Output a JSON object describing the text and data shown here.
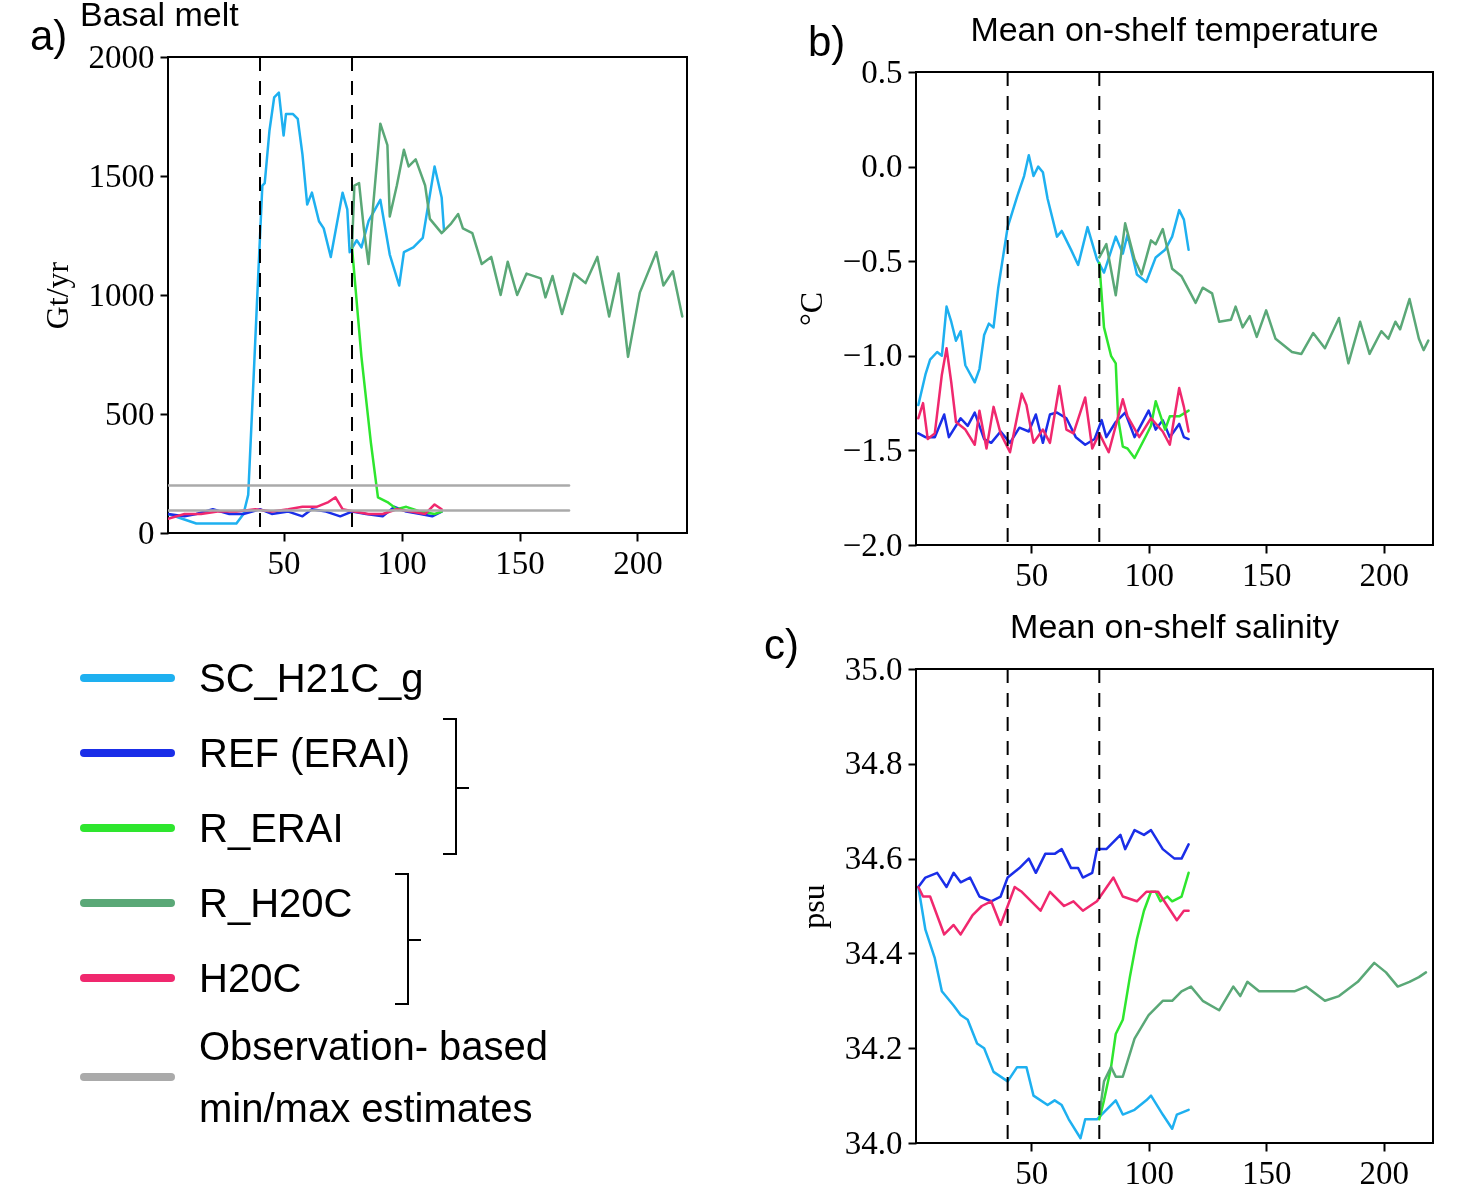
{
  "chart_data": [
    {
      "type": "line",
      "title": "Basal melt",
      "ylabel": "Gt/yr",
      "annotations": [
        "a)"
      ],
      "legend": "bottom",
      "xlim": [
        1,
        221
      ],
      "xticks": [
        50,
        100,
        150,
        200
      ],
      "ylim": [
        0,
        2000
      ],
      "yticks": [
        0,
        500,
        1000,
        1500,
        2000
      ],
      "ref_lines": [
        {
          "axis": "x",
          "value": 40,
          "color": "#000000",
          "line_style": "dashed"
        },
        {
          "axis": "x",
          "value": 79,
          "color": "#000000",
          "line_style": "dashed"
        }
      ],
      "series": [
        {
          "name": "SC_H21C_g",
          "color": "#1eb0f0",
          "x": [
            1,
            7,
            13,
            20,
            30,
            33,
            35,
            37,
            39,
            41,
            42,
            44,
            46,
            48,
            50,
            51,
            54,
            56,
            58,
            60,
            62,
            65,
            67,
            70,
            75,
            77,
            78,
            81,
            83,
            86,
            91,
            95,
            99,
            101,
            105,
            109,
            111,
            114,
            117,
            118
          ],
          "values": [
            80,
            60,
            40,
            40,
            40,
            80,
            160,
            590,
            1030,
            1460,
            1470,
            1690,
            1830,
            1850,
            1670,
            1760,
            1760,
            1740,
            1590,
            1380,
            1430,
            1310,
            1280,
            1160,
            1430,
            1360,
            1180,
            1230,
            1200,
            1310,
            1400,
            1170,
            1040,
            1180,
            1200,
            1240,
            1360,
            1540,
            1410,
            1270
          ]
        },
        {
          "name": "REF (ERAI)",
          "color": "#1a2ee8",
          "x": [
            1,
            8,
            13,
            20,
            27,
            33,
            40,
            45,
            52,
            58,
            62,
            68,
            74,
            79,
            85,
            92,
            97,
            102,
            108,
            113,
            117
          ],
          "values": [
            80,
            70,
            80,
            100,
            80,
            80,
            100,
            80,
            90,
            70,
            100,
            90,
            70,
            90,
            80,
            70,
            110,
            90,
            80,
            70,
            90
          ]
        },
        {
          "name": "R_ERAI",
          "color": "#2ee62e",
          "x": [
            79,
            83,
            87,
            90,
            94,
            98,
            102,
            108,
            114,
            117
          ],
          "values": [
            1200,
            740,
            380,
            150,
            130,
            100,
            110,
            90,
            80,
            90
          ]
        },
        {
          "name": "R_H20C",
          "color": "#5aa877",
          "x": [
            79,
            80,
            82,
            84,
            86,
            88,
            91,
            94,
            95,
            98,
            101,
            103,
            106,
            110,
            112,
            117,
            121,
            124,
            126,
            130,
            134,
            138,
            142,
            145,
            149,
            153,
            159,
            161,
            164,
            168,
            173,
            178,
            183,
            188,
            192,
            196,
            201,
            208,
            211,
            215,
            219
          ],
          "values": [
            1200,
            1460,
            1470,
            1280,
            1130,
            1380,
            1720,
            1630,
            1330,
            1460,
            1610,
            1540,
            1570,
            1460,
            1320,
            1260,
            1300,
            1340,
            1280,
            1260,
            1130,
            1160,
            1000,
            1140,
            1000,
            1090,
            1070,
            990,
            1080,
            920,
            1090,
            1050,
            1160,
            910,
            1090,
            740,
            1010,
            1180,
            1040,
            1100,
            910
          ]
        },
        {
          "name": "H20C",
          "color": "#f0286e",
          "x": [
            1,
            8,
            15,
            22,
            30,
            38,
            45,
            52,
            58,
            64,
            69,
            72,
            75,
            80,
            86,
            92,
            98,
            104,
            110,
            114,
            117
          ],
          "values": [
            60,
            80,
            80,
            90,
            90,
            100,
            90,
            100,
            110,
            110,
            130,
            150,
            100,
            90,
            80,
            80,
            100,
            90,
            80,
            120,
            100
          ]
        },
        {
          "name": "Observation- based min/max estimates",
          "color": "#aaaaaa",
          "x": [
            1,
            171
          ],
          "values": [
            200,
            200
          ]
        },
        {
          "color": "#aaaaaa",
          "x": [
            1,
            171
          ],
          "values": [
            95,
            95
          ]
        }
      ]
    },
    {
      "type": "line",
      "title": "Mean on-shelf temperature",
      "ylabel": "°C",
      "annotations": [
        "b)"
      ],
      "xlim": [
        1,
        221
      ],
      "xticks": [
        50,
        100,
        150,
        200
      ],
      "ylim": [
        -2,
        0.5
      ],
      "yticks": [
        {
          "value": -2,
          "label": "−2.0"
        },
        {
          "value": -1.5,
          "label": "−1.5"
        },
        {
          "value": -1,
          "label": "−1.0"
        },
        {
          "value": -0.5,
          "label": "−0.5"
        },
        {
          "value": 0,
          "label": "0.0"
        },
        0.5
      ],
      "ref_lines": [
        {
          "axis": "x",
          "value": 40,
          "color": "#000000",
          "line_style": "dashed"
        },
        {
          "axis": "x",
          "value": 79,
          "color": "#000000",
          "line_style": "dashed"
        }
      ],
      "series": [
        {
          "color": "#1eb0f0",
          "x": [
            2,
            5,
            7,
            10,
            12,
            14,
            16,
            18,
            20,
            22,
            26,
            28,
            30,
            32,
            34,
            36,
            40,
            44,
            47,
            49,
            51,
            53,
            55,
            57,
            61,
            63,
            67,
            70,
            74,
            78,
            81,
            86,
            89,
            91,
            95,
            99,
            103,
            107,
            110,
            113,
            115,
            117
          ],
          "values": [
            -1.26,
            -1.1,
            -1.02,
            -0.98,
            -1.0,
            -0.74,
            -0.82,
            -0.92,
            -0.87,
            -1.05,
            -1.14,
            -1.07,
            -0.89,
            -0.83,
            -0.85,
            -0.64,
            -0.32,
            -0.16,
            -0.05,
            0.06,
            -0.05,
            0.0,
            -0.03,
            -0.17,
            -0.37,
            -0.34,
            -0.44,
            -0.52,
            -0.32,
            -0.49,
            -0.56,
            -0.37,
            -0.46,
            -0.36,
            -0.57,
            -0.61,
            -0.48,
            -0.44,
            -0.37,
            -0.23,
            -0.28,
            -0.44
          ]
        },
        {
          "color": "#1a2ee8",
          "x": [
            2,
            5,
            9,
            13,
            15,
            20,
            23,
            26,
            30,
            33,
            37,
            41,
            45,
            49,
            52,
            55,
            58,
            61,
            65,
            69,
            73,
            77,
            80,
            82,
            86,
            90,
            94,
            100,
            103,
            106,
            109,
            113,
            115,
            117
          ],
          "values": [
            -1.41,
            -1.43,
            -1.43,
            -1.31,
            -1.43,
            -1.33,
            -1.37,
            -1.3,
            -1.44,
            -1.46,
            -1.4,
            -1.46,
            -1.38,
            -1.4,
            -1.31,
            -1.46,
            -1.31,
            -1.3,
            -1.33,
            -1.43,
            -1.47,
            -1.44,
            -1.34,
            -1.43,
            -1.35,
            -1.3,
            -1.43,
            -1.29,
            -1.39,
            -1.34,
            -1.43,
            -1.36,
            -1.43,
            -1.44
          ]
        },
        {
          "color": "#2ee62e",
          "x": [
            79,
            81,
            84,
            86,
            87,
            89,
            91,
            94,
            99,
            101,
            103,
            107,
            109,
            113,
            117
          ],
          "values": [
            -0.51,
            -0.85,
            -1.0,
            -1.04,
            -1.33,
            -1.48,
            -1.49,
            -1.54,
            -1.42,
            -1.37,
            -1.24,
            -1.39,
            -1.32,
            -1.32,
            -1.29
          ]
        },
        {
          "color": "#5aa877",
          "x": [
            79,
            82,
            86,
            90,
            94,
            97,
            101,
            103,
            106,
            110,
            114,
            120,
            123,
            127,
            130,
            135,
            137,
            140,
            143,
            146,
            150,
            154,
            161,
            165,
            170,
            175,
            181,
            185,
            190,
            194,
            199,
            202,
            205,
            207,
            211,
            215,
            217,
            219
          ],
          "values": [
            -0.48,
            -0.41,
            -0.68,
            -0.3,
            -0.49,
            -0.57,
            -0.39,
            -0.41,
            -0.33,
            -0.54,
            -0.58,
            -0.72,
            -0.64,
            -0.67,
            -0.82,
            -0.81,
            -0.74,
            -0.85,
            -0.79,
            -0.9,
            -0.76,
            -0.91,
            -0.98,
            -0.99,
            -0.88,
            -0.96,
            -0.8,
            -1.04,
            -0.82,
            -0.99,
            -0.87,
            -0.91,
            -0.82,
            -0.86,
            -0.7,
            -0.91,
            -0.97,
            -0.92
          ]
        },
        {
          "color": "#f0286e",
          "x": [
            2,
            4,
            6,
            9,
            12,
            14,
            16,
            18,
            22,
            26,
            28,
            31,
            34,
            37,
            41,
            46,
            48,
            51,
            55,
            58,
            62,
            65,
            68,
            73,
            76,
            79,
            83,
            89,
            91,
            96,
            101,
            106,
            109,
            113,
            115,
            117
          ],
          "values": [
            -1.33,
            -1.25,
            -1.44,
            -1.41,
            -1.1,
            -0.96,
            -1.14,
            -1.35,
            -1.39,
            -1.47,
            -1.29,
            -1.49,
            -1.27,
            -1.41,
            -1.51,
            -1.2,
            -1.26,
            -1.46,
            -1.39,
            -1.46,
            -1.16,
            -1.39,
            -1.41,
            -1.22,
            -1.49,
            -1.41,
            -1.51,
            -1.23,
            -1.32,
            -1.43,
            -1.33,
            -1.4,
            -1.47,
            -1.17,
            -1.27,
            -1.4
          ]
        }
      ]
    },
    {
      "type": "line",
      "title": "Mean on-shelf salinity",
      "ylabel": "psu",
      "annotations": [
        "c)"
      ],
      "xlim": [
        1,
        221
      ],
      "xticks": [
        50,
        100,
        150,
        200
      ],
      "ylim": [
        34.0,
        35.0
      ],
      "yticks": [
        {
          "value": 34,
          "label": "34.0"
        },
        34.2,
        34.4,
        34.6,
        34.8,
        {
          "value": 35,
          "label": "35.0"
        }
      ],
      "ref_lines": [
        {
          "axis": "x",
          "value": 40,
          "color": "#000000",
          "line_style": "dashed"
        },
        {
          "axis": "x",
          "value": 79,
          "color": "#000000",
          "line_style": "dashed"
        }
      ],
      "series": [
        {
          "color": "#1eb0f0",
          "x": [
            2,
            5,
            9,
            12,
            17,
            20,
            23,
            27,
            30,
            34,
            40,
            44,
            48,
            51,
            57,
            60,
            63,
            66,
            71,
            73,
            78,
            80,
            86,
            89,
            94,
            99,
            101,
            106,
            110,
            112,
            117
          ],
          "values": [
            34.54,
            34.45,
            34.39,
            34.32,
            34.29,
            34.27,
            34.26,
            34.21,
            34.2,
            34.15,
            34.13,
            34.16,
            34.16,
            34.1,
            34.08,
            34.09,
            34.08,
            34.05,
            34.01,
            34.05,
            34.05,
            34.06,
            34.09,
            34.06,
            34.07,
            34.09,
            34.1,
            34.06,
            34.03,
            34.06,
            34.07
          ]
        },
        {
          "color": "#1a2ee8",
          "x": [
            2,
            5,
            10,
            14,
            17,
            20,
            24,
            28,
            33,
            37,
            40,
            45,
            49,
            52,
            56,
            60,
            63,
            67,
            70,
            72,
            76,
            78,
            82,
            88,
            90,
            94,
            98,
            101,
            106,
            111,
            114,
            117
          ],
          "values": [
            34.54,
            34.56,
            34.57,
            34.54,
            34.57,
            34.55,
            34.56,
            34.52,
            34.51,
            34.52,
            34.56,
            34.58,
            34.6,
            34.57,
            34.61,
            34.61,
            34.62,
            34.58,
            34.58,
            34.56,
            34.57,
            34.62,
            34.62,
            34.65,
            34.62,
            34.66,
            34.65,
            34.66,
            34.62,
            34.6,
            34.6,
            34.63
          ]
        },
        {
          "color": "#2ee62e",
          "x": [
            79,
            81,
            84,
            86,
            89,
            92,
            95,
            98,
            101,
            103,
            105,
            108,
            110,
            114,
            117
          ],
          "values": [
            34.05,
            34.09,
            34.16,
            34.23,
            34.26,
            34.35,
            34.43,
            34.49,
            34.53,
            34.53,
            34.51,
            34.52,
            34.51,
            34.52,
            34.57
          ]
        },
        {
          "color": "#5aa877",
          "x": [
            79,
            81,
            84,
            86,
            89,
            94,
            100,
            106,
            110,
            114,
            118,
            123,
            130,
            136,
            139,
            142,
            147,
            155,
            162,
            167,
            175,
            181,
            189,
            196,
            201,
            206,
            211,
            215,
            218
          ],
          "values": [
            34.06,
            34.13,
            34.16,
            34.14,
            34.14,
            34.22,
            34.27,
            34.3,
            34.3,
            34.32,
            34.33,
            34.3,
            34.28,
            34.33,
            34.31,
            34.34,
            34.32,
            34.32,
            34.32,
            34.33,
            34.3,
            34.31,
            34.34,
            34.38,
            34.36,
            34.33,
            34.34,
            34.35,
            34.36
          ]
        },
        {
          "color": "#f0286e",
          "x": [
            2,
            4,
            7,
            13,
            17,
            20,
            25,
            29,
            33,
            37,
            43,
            46,
            54,
            58,
            64,
            68,
            72,
            78,
            85,
            89,
            95,
            99,
            104,
            112,
            115,
            117
          ],
          "values": [
            34.54,
            34.52,
            34.52,
            34.44,
            34.46,
            34.44,
            34.48,
            34.5,
            34.51,
            34.46,
            34.54,
            34.53,
            34.49,
            34.53,
            34.5,
            34.51,
            34.49,
            34.51,
            34.56,
            34.52,
            34.51,
            34.53,
            34.53,
            34.47,
            34.49,
            34.49
          ]
        }
      ]
    }
  ]
}
